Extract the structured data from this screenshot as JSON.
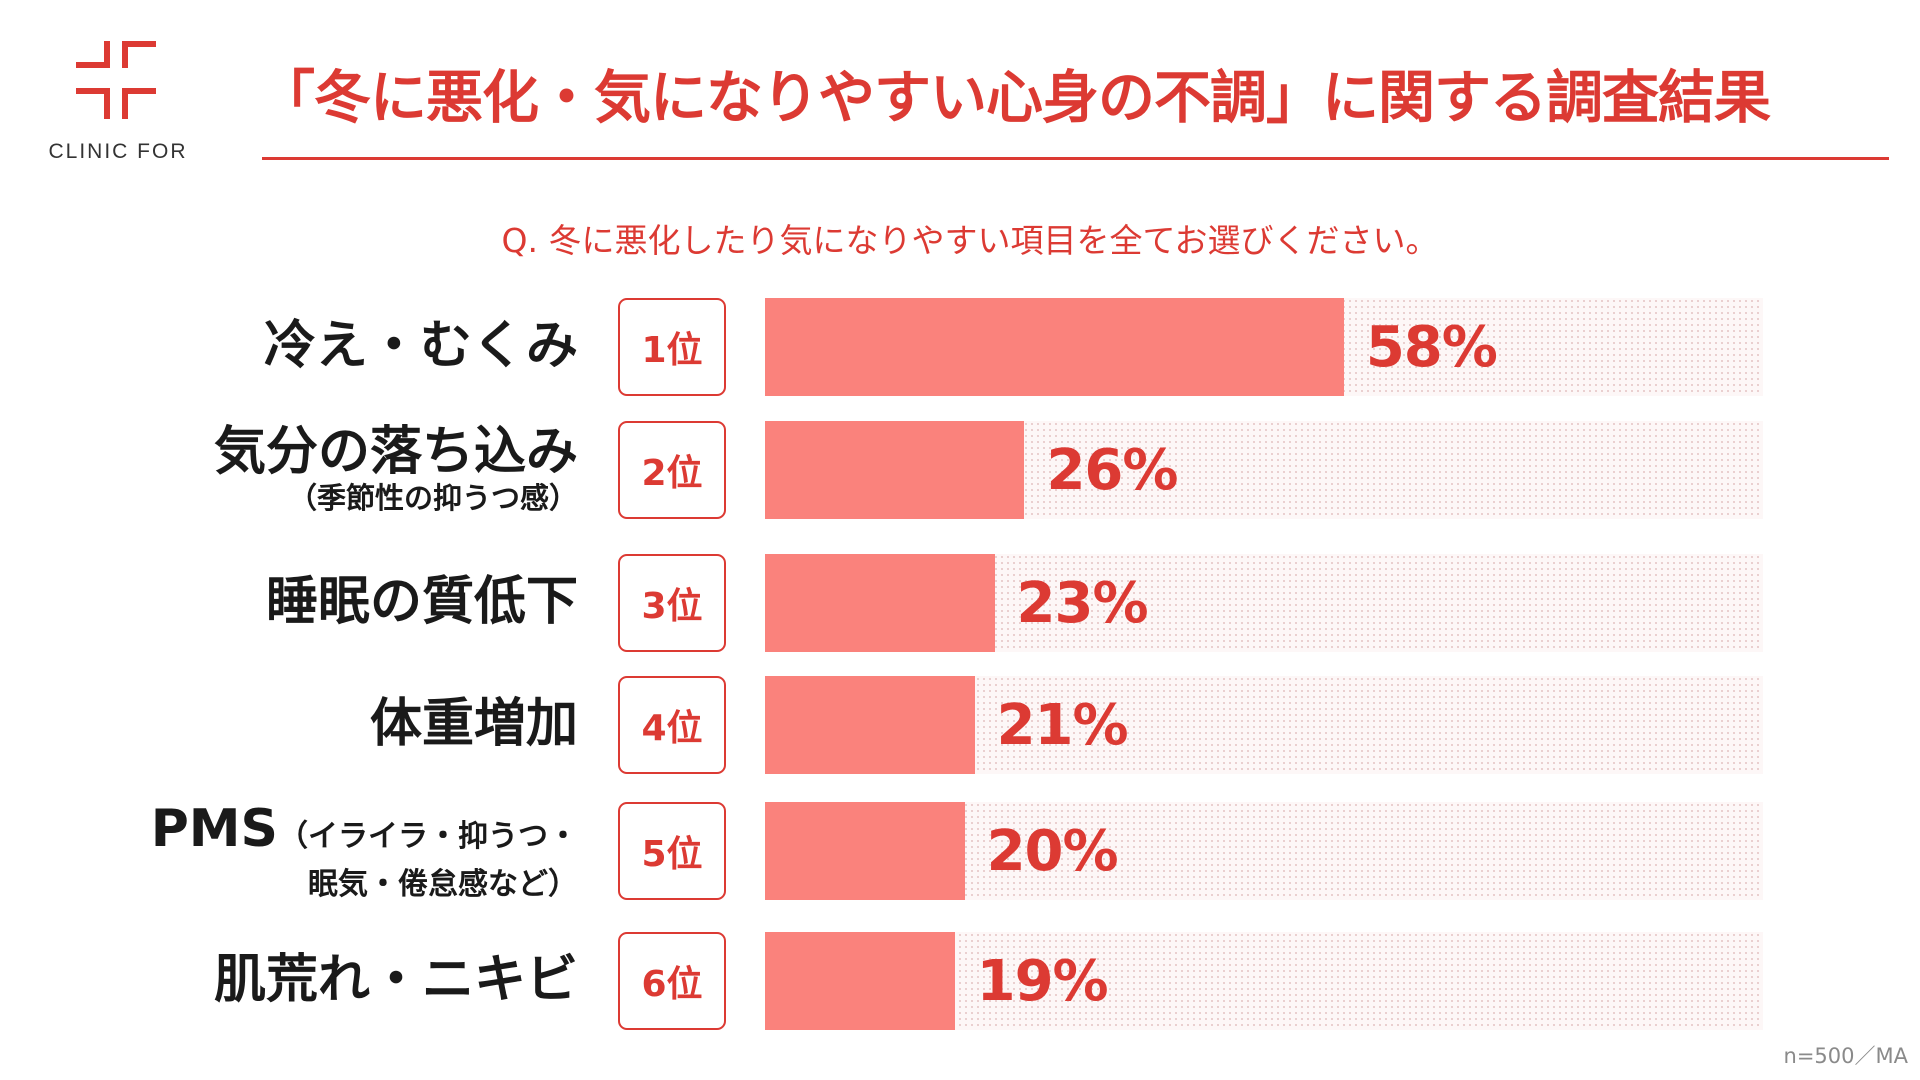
{
  "brand": {
    "name": "CLINIC FOR",
    "color": "#dc3a33"
  },
  "header": {
    "title": "「冬に悪化・気になりやすい心身の不調」に関する調査結果"
  },
  "question": "Q. 冬に悪化したり気になりやすい項目を全てお選びください。",
  "note": "n=500／MA",
  "colors": {
    "bar": "#fa827c",
    "accent": "#dc3a33",
    "track": "#fdf7f7"
  },
  "chart_data": {
    "type": "bar",
    "orientation": "horizontal",
    "title": "「冬に悪化・気になりやすい心身の不調」に関する調査結果",
    "subtitle": "Q. 冬に悪化したり気になりやすい項目を全てお選びください。",
    "xlim": [
      0,
      100
    ],
    "unit": "%",
    "grid": false,
    "categories": [
      {
        "label": "冷え・むくみ",
        "sub": "",
        "rank": "1位",
        "value": 58,
        "value_label": "58%"
      },
      {
        "label": "気分の落ち込み",
        "sub": "（季節性の抑うつ感）",
        "rank": "2位",
        "value": 26,
        "value_label": "26%"
      },
      {
        "label": "睡眠の質低下",
        "sub": "",
        "rank": "3位",
        "value": 23,
        "value_label": "23%"
      },
      {
        "label": "体重増加",
        "sub": "",
        "rank": "4位",
        "value": 21,
        "value_label": "21%"
      },
      {
        "label": "PMS",
        "sub": "（イライラ・抑うつ・",
        "sub2": "眠気・倦怠感など）",
        "rank": "5位",
        "value": 20,
        "value_label": "20%"
      },
      {
        "label": "肌荒れ・ニキビ",
        "sub": "",
        "rank": "6位",
        "value": 19,
        "value_label": "19%"
      }
    ],
    "footnote": "n=500／MA"
  }
}
